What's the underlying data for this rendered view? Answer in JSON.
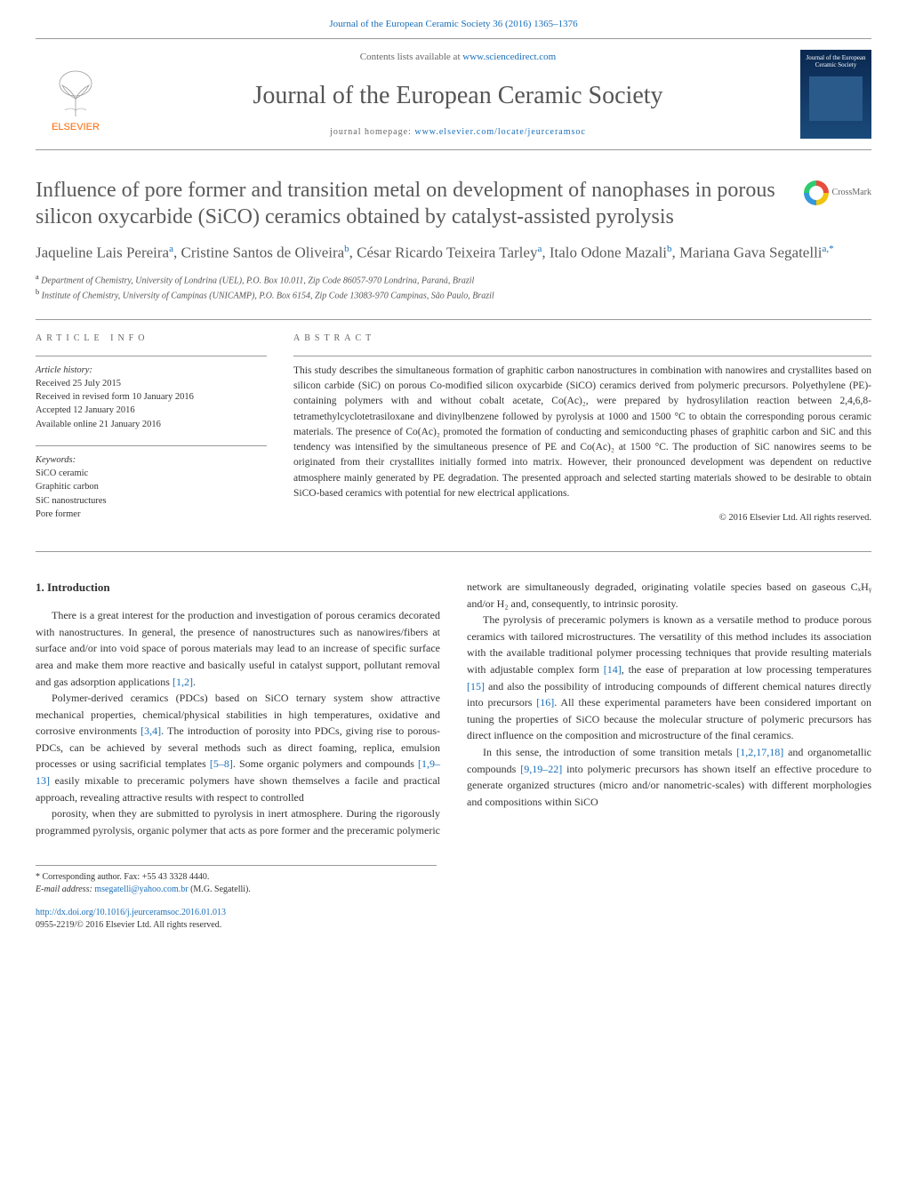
{
  "colors": {
    "link": "#1a6eb8",
    "text": "#333333",
    "title_gray": "#5a5a5a",
    "elsevier_orange": "#ff6600",
    "cover_bg_top": "#0a2850",
    "cover_bg_bottom": "#1a4a7a",
    "rule": "#999999"
  },
  "header_citation": "Journal of the European Ceramic Society 36 (2016) 1365–1376",
  "masthead": {
    "publisher_name": "ELSEVIER",
    "contents_prefix": "Contents lists available at ",
    "contents_link_text": "www.sciencedirect.com",
    "journal_title": "Journal of the European Ceramic Society",
    "homepage_prefix": "journal homepage: ",
    "homepage_link": "www.elsevier.com/locate/jeurceramsoc",
    "cover_title": "Journal of the European Ceramic Society"
  },
  "article": {
    "title": "Influence of pore former and transition metal on development of nanophases in porous silicon oxycarbide (SiCO) ceramics obtained by catalyst-assisted pyrolysis",
    "crossmark_label": "CrossMark",
    "authors_html": "Jaqueline Lais Pereira<sup>a</sup>, Cristine Santos de Oliveira<sup>b</sup>, César Ricardo Teixeira Tarley<sup>a</sup>, Italo Odone Mazali<sup>b</sup>, Mariana Gava Segatelli<sup>a,*</sup>",
    "affiliations": [
      {
        "marker": "a",
        "text": "Department of Chemistry, University of Londrina (UEL), P.O. Box 10.011, Zip Code 86057-970 Londrina, Paraná, Brazil"
      },
      {
        "marker": "b",
        "text": "Institute of Chemistry, University of Campinas (UNICAMP), P.O. Box 6154, Zip Code 13083-970 Campinas, São Paulo, Brazil"
      }
    ]
  },
  "article_info": {
    "heading": "article info",
    "history_label": "Article history:",
    "history": [
      "Received 25 July 2015",
      "Received in revised form 10 January 2016",
      "Accepted 12 January 2016",
      "Available online 21 January 2016"
    ],
    "keywords_label": "Keywords:",
    "keywords": [
      "SiCO ceramic",
      "Graphitic carbon",
      "SiC nanostructures",
      "Pore former"
    ]
  },
  "abstract": {
    "heading": "abstract",
    "text": "This study describes the simultaneous formation of graphitic carbon nanostructures in combination with nanowires and crystallites based on silicon carbide (SiC) on porous Co-modified silicon oxycarbide (SiCO) ceramics derived from polymeric precursors. Polyethylene (PE)-containing polymers with and without cobalt acetate, Co(Ac)₂, were prepared by hydrosylilation reaction between 2,4,6,8-tetramethylcyclotetrasiloxane and divinylbenzene followed by pyrolysis at 1000 and 1500 °C to obtain the corresponding porous ceramic materials. The presence of Co(Ac)₂ promoted the formation of conducting and semiconducting phases of graphitic carbon and SiC and this tendency was intensified by the simultaneous presence of PE and Co(Ac)₂ at 1500 °C. The production of SiC nanowires seems to be originated from their crystallites initially formed into matrix. However, their pronounced development was dependent on reductive atmosphere mainly generated by PE degradation. The presented approach and selected starting materials showed to be desirable to obtain SiCO-based ceramics with potential for new electrical applications.",
    "copyright": "© 2016 Elsevier Ltd. All rights reserved."
  },
  "body": {
    "section_heading": "1. Introduction",
    "paragraphs": [
      "There is a great interest for the production and investigation of porous ceramics decorated with nanostructures. In general, the presence of nanostructures such as nanowires/fibers at surface and/or into void space of porous materials may lead to an increase of specific surface area and make them more reactive and basically useful in catalyst support, pollutant removal and gas adsorption applications [1,2].",
      "Polymer-derived ceramics (PDCs) based on SiCO ternary system show attractive mechanical properties, chemical/physical stabilities in high temperatures, oxidative and corrosive environments [3,4]. The introduction of porosity into PDCs, giving rise to porous-PDCs, can be achieved by several methods such as direct foaming, replica, emulsion processes or using sacrificial templates [5–8]. Some organic polymers and compounds [1,9–13] easily mixable to preceramic polymers have shown themselves a facile and practical approach, revealing attractive results with respect to controlled",
      "porosity, when they are submitted to pyrolysis in inert atmosphere. During the rigorously programmed pyrolysis, organic polymer that acts as pore former and the preceramic polymeric network are simultaneously degraded, originating volatile species based on gaseous CₓHᵧ and/or H₂ and, consequently, to intrinsic porosity.",
      "The pyrolysis of preceramic polymers is known as a versatile method to produce porous ceramics with tailored microstructures. The versatility of this method includes its association with the available traditional polymer processing techniques that provide resulting materials with adjustable complex form [14], the ease of preparation at low processing temperatures [15] and also the possibility of introducing compounds of different chemical natures directly into precursors [16]. All these experimental parameters have been considered important on tuning the properties of SiCO because the molecular structure of polymeric precursors has direct influence on the composition and microstructure of the final ceramics.",
      "In this sense, the introduction of some transition metals [1,2,17,18] and organometallic compounds [9,19–22] into polymeric precursors has shown itself an effective procedure to generate organized structures (micro and/or nanometric-scales) with different morphologies and compositions within SiCO"
    ],
    "ref_links": [
      "[1,2]",
      "[3,4]",
      "[5–8]",
      "[1,9–13]",
      "[14]",
      "[15]",
      "[16]",
      "[1,2,17,18]",
      "[9,19–22]"
    ]
  },
  "footer": {
    "corresponding_label": "* Corresponding author. Fax: +55 43 3328 4440.",
    "email_label": "E-mail address: ",
    "email": "msegatelli@yahoo.com.br",
    "email_author": "(M.G. Segatelli).",
    "doi_link": "http://dx.doi.org/10.1016/j.jeurceramsoc.2016.01.013",
    "issn_line": "0955-2219/© 2016 Elsevier Ltd. All rights reserved."
  }
}
